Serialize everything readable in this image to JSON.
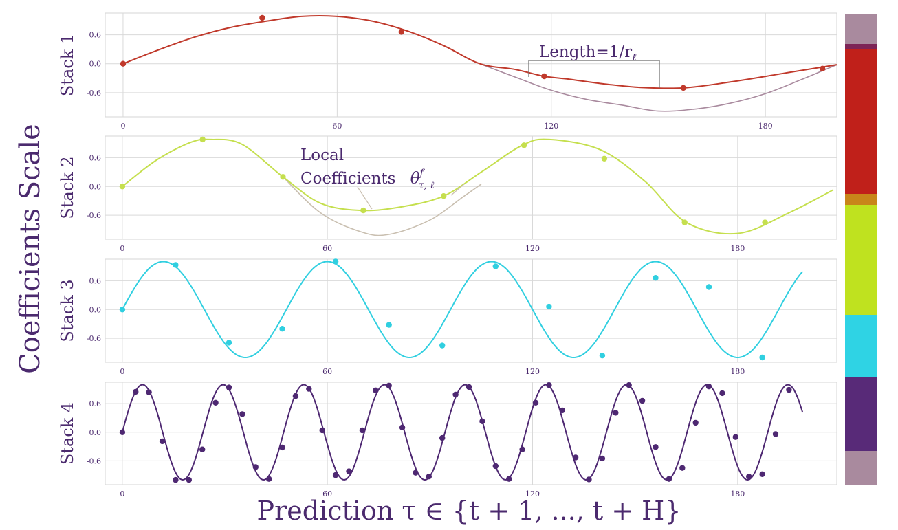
{
  "figure": {
    "ylabel": "Coefficients Scale",
    "xlabel": "Prediction τ ∈ {t + 1, ..., t + H}"
  },
  "annotations": {
    "length": "Length=1/r",
    "length_sub": "ℓ",
    "local_line1": "Local",
    "local_line2": "Coefficients",
    "theta": "θ",
    "theta_sup": "f",
    "theta_sub": "τ, ℓ"
  },
  "colors": {
    "stack1": "#c0392b",
    "stack1_base": "#a98a9e",
    "stack2": "#c5df4e",
    "stack2_base": "#c9bfb0",
    "stack3": "#30cfe0",
    "stack4": "#4e2872",
    "text": "#4b2a6e",
    "grid": "#d9d9d9"
  },
  "colorbar": {
    "segments": [
      {
        "color": "#a98a9e",
        "label": "mauve"
      },
      {
        "color": "#7d2457",
        "label": "transition"
      },
      {
        "color": "#c0201a",
        "label": "stack1-red"
      },
      {
        "color": "#c8861a",
        "label": "transition"
      },
      {
        "color": "#bfe21f",
        "label": "stack2-yellowgreen"
      },
      {
        "color": "#2fd3e4",
        "label": "stack3-cyan"
      },
      {
        "color": "#582a78",
        "label": "stack4-purple"
      },
      {
        "color": "#a98a9e",
        "label": "mauve"
      }
    ]
  },
  "chart_data": [
    {
      "type": "line",
      "panel_label": "Stack 1",
      "xlim": [
        -5,
        200
      ],
      "ylim": [
        -1.1,
        1.05
      ],
      "xticks": [
        "0",
        "60",
        "120",
        "180"
      ],
      "yticks": [
        "0.6",
        "0.0",
        "-0.6"
      ],
      "series": [
        {
          "role": "interpolated",
          "x": [
            0,
            10,
            20,
            30,
            40,
            50,
            60,
            70,
            80,
            90,
            100,
            110,
            118,
            125,
            135,
            145,
            157,
            170,
            185,
            200
          ],
          "y": [
            0.0,
            0.29,
            0.55,
            0.75,
            0.88,
            0.98,
            0.98,
            0.88,
            0.67,
            0.37,
            0.0,
            -0.12,
            -0.26,
            -0.32,
            -0.42,
            -0.49,
            -0.5,
            -0.38,
            -0.2,
            -0.02
          ]
        },
        {
          "role": "base",
          "x": [
            100,
            110,
            120,
            130,
            140,
            150,
            160,
            170,
            180,
            190,
            200
          ],
          "y": [
            0.0,
            -0.28,
            -0.55,
            -0.74,
            -0.86,
            -0.98,
            -0.94,
            -0.82,
            -0.62,
            -0.33,
            -0.02
          ]
        },
        {
          "role": "coefficients",
          "x": [
            0,
            39,
            78,
            118,
            157,
            196
          ],
          "y": [
            0.0,
            0.95,
            0.66,
            -0.26,
            -0.5,
            -0.1
          ]
        }
      ]
    },
    {
      "type": "line",
      "panel_label": "Stack 2",
      "xlim": [
        -5,
        209
      ],
      "ylim": [
        -1.1,
        1.05
      ],
      "xticks": [
        "0",
        "60",
        "120",
        "180"
      ],
      "yticks": [
        "0.6",
        "0.0",
        "-0.6"
      ],
      "series": [
        {
          "role": "interpolated",
          "x": [
            0,
            10,
            20,
            26,
            35,
            47,
            58,
            70,
            82,
            94,
            105,
            117,
            125,
            140,
            153,
            165,
            180,
            195,
            208
          ],
          "y": [
            0.0,
            0.55,
            0.92,
            0.98,
            0.88,
            0.2,
            -0.35,
            -0.5,
            -0.42,
            -0.2,
            0.3,
            0.86,
            0.98,
            0.76,
            0.1,
            -0.75,
            -0.98,
            -0.55,
            -0.07
          ]
        },
        {
          "role": "base",
          "x": [
            47,
            58,
            70,
            78,
            90,
            100,
            105
          ],
          "y": [
            0.2,
            -0.55,
            -0.95,
            -1.0,
            -0.7,
            -0.2,
            0.05
          ]
        },
        {
          "role": "coefficients",
          "x": [
            0,
            23.5,
            47,
            70.5,
            94,
            117.5,
            141,
            164.5,
            188
          ],
          "y": [
            0.0,
            0.98,
            0.2,
            -0.5,
            -0.2,
            0.86,
            0.58,
            -0.75,
            -0.75
          ]
        }
      ]
    },
    {
      "type": "line",
      "panel_label": "Stack 3",
      "xlim": [
        -5,
        209
      ],
      "ylim": [
        -1.1,
        1.05
      ],
      "xticks": [
        "0",
        "60",
        "120",
        "180"
      ],
      "yticks": [
        "0.6",
        "0.0",
        "-0.6"
      ],
      "series": [
        {
          "role": "interpolated",
          "function": "sin",
          "period": 48,
          "amplitude": 1.0,
          "x_start": 0,
          "x_end": 199
        },
        {
          "role": "coefficients",
          "x": [
            0,
            15.6,
            31.2,
            46.8,
            62.4,
            78,
            93.6,
            109.2,
            124.8,
            140.4,
            156,
            171.6,
            187.2
          ],
          "y": [
            0.0,
            0.93,
            -0.69,
            -0.4,
            1.0,
            -0.32,
            -0.75,
            0.9,
            0.06,
            -0.96,
            0.66,
            0.47,
            -1.0
          ]
        }
      ]
    },
    {
      "type": "line",
      "panel_label": "Stack 4",
      "xlim": [
        -5,
        209
      ],
      "ylim": [
        -1.1,
        1.05
      ],
      "xticks": [
        "0",
        "60",
        "120",
        "180"
      ],
      "yticks": [
        "0.6",
        "0.0",
        "-0.6"
      ],
      "series": [
        {
          "role": "interpolated",
          "function": "sin",
          "period": 23.6,
          "amplitude": 1.0,
          "x_start": 0,
          "x_end": 199
        },
        {
          "role": "coefficients",
          "x": [
            0,
            3.9,
            7.8,
            11.7,
            15.6,
            19.5,
            23.4,
            27.3,
            31.2,
            35.1,
            39,
            42.9,
            46.8,
            50.7,
            54.6,
            58.5,
            62.4,
            66.3,
            70.2,
            74.1,
            78,
            81.9,
            85.8,
            89.7,
            93.6,
            97.5,
            101.4,
            105.3,
            109.2,
            113.1,
            117,
            120.9,
            124.8,
            128.7,
            132.6,
            136.5,
            140.4,
            144.3,
            148.2,
            152.1,
            156,
            159.9,
            163.8,
            167.7,
            171.6,
            175.5,
            179.4,
            183.3,
            187.2,
            191.1,
            195
          ],
          "y": [
            0.0,
            0.85,
            0.84,
            -0.19,
            -1.0,
            -1.0,
            -0.36,
            0.62,
            0.94,
            0.38,
            -0.73,
            -0.98,
            -0.32,
            0.76,
            0.91,
            0.04,
            -0.9,
            -0.82,
            0.04,
            0.88,
            0.98,
            0.1,
            -0.85,
            -0.93,
            -0.12,
            0.79,
            0.95,
            0.23,
            -0.71,
            -0.98,
            -0.36,
            0.62,
            0.99,
            0.46,
            -0.53,
            -0.99,
            -0.55,
            0.41,
            0.99,
            0.66,
            -0.31,
            -0.98,
            -0.75,
            0.2,
            0.96,
            0.82,
            -0.1,
            -0.93,
            -0.88,
            -0.04,
            0.89
          ]
        }
      ]
    }
  ]
}
